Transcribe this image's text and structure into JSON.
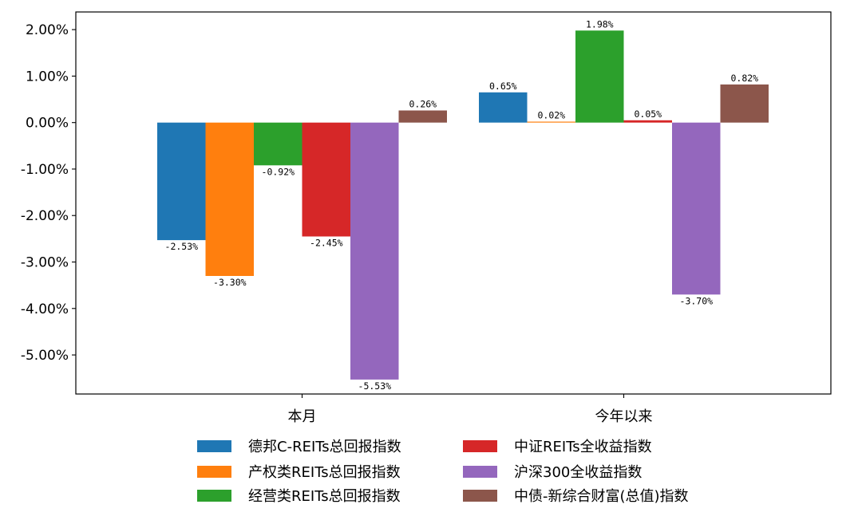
{
  "chart_data": {
    "type": "bar",
    "categories": [
      "本月",
      "今年以来"
    ],
    "series": [
      {
        "name": "德邦C-REITs总回报指数",
        "color": "#1f77b4",
        "values": [
          -2.53,
          0.65
        ]
      },
      {
        "name": "产权类REITs总回报指数",
        "color": "#ff7f0e",
        "values": [
          -3.3,
          0.02
        ]
      },
      {
        "name": "经营类REITs总回报指数",
        "color": "#2ca02c",
        "values": [
          -0.92,
          1.98
        ]
      },
      {
        "name": "中证REITs全收益指数",
        "color": "#d62728",
        "values": [
          -2.45,
          0.05
        ]
      },
      {
        "name": "沪深300全收益指数",
        "color": "#9467bd",
        "values": [
          -5.53,
          -3.7
        ]
      },
      {
        "name": "中债-新综合财富(总值)指数",
        "color": "#8c564b",
        "values": [
          0.26,
          0.82
        ]
      }
    ],
    "value_labels": [
      [
        "-2.53%",
        "0.65%"
      ],
      [
        "-3.30%",
        "0.02%"
      ],
      [
        "-0.92%",
        "1.98%"
      ],
      [
        "-2.45%",
        "0.05%"
      ],
      [
        "-5.53%",
        "-3.70%"
      ],
      [
        "0.26%",
        "0.82%"
      ]
    ],
    "yticks": [
      2,
      1,
      0,
      -1,
      -2,
      -3,
      -4,
      -5
    ],
    "ytick_labels": [
      "2.00%",
      "1.00%",
      "0.00%",
      "-1.00%",
      "-2.00%",
      "-3.00%",
      "-4.00%",
      "-5.00%"
    ],
    "ylim": [
      -5.84,
      2.38
    ],
    "grid": false,
    "legend_placement": "bottom-center",
    "title": "",
    "xlabel": "",
    "ylabel": ""
  }
}
